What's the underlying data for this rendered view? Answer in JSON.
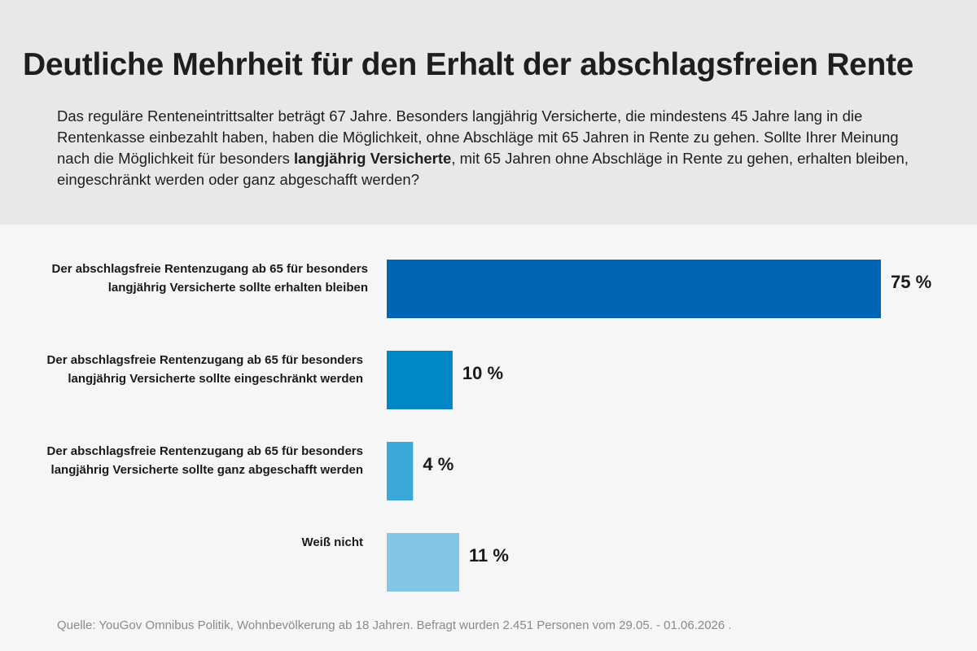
{
  "header": {
    "title": "Deutliche Mehrheit für den Erhalt der abschlagsfreien Rente",
    "subtitle_pre": "Das reguläre Renteneintrittsalter beträgt 67 Jahre. Besonders langjährig Versicherte, die mindestens 45 Jahre lang in die Rentenkasse einbezahlt haben, haben die Möglichkeit, ohne Abschläge mit 65 Jahren in Rente zu gehen. Sollte Ihrer Meinung nach die Möglichkeit für besonders ",
    "subtitle_bold": "langjährig Versicherte",
    "subtitle_post": ", mit 65 Jahren ohne Abschläge in Rente zu gehen, erhalten bleiben, eingeschränkt werden oder ganz abgeschafft werden?"
  },
  "chart_data": {
    "type": "bar",
    "orientation": "horizontal",
    "categories": [
      "Der abschlagsfreie Rentenzugang ab 65 für besonders langjährig Versicherte sollte erhalten bleiben",
      "Der abschlagsfreie Rentenzugang ab 65 für besonders langjährig Versicherte sollte eingeschränkt werden",
      "Der abschlagsfreie Rentenzugang ab 65 für besonders langjährig Versicherte sollte ganz abgeschafft werden",
      "Weiß nicht"
    ],
    "values": [
      75,
      10,
      4,
      11
    ],
    "value_labels": [
      "75 %",
      "10 %",
      "4 %",
      "11 %"
    ],
    "colors": [
      "#0066b3",
      "#0087c8",
      "#3aa8d8",
      "#85c5e5"
    ],
    "xlim": [
      0,
      75
    ],
    "grid": false,
    "legend": "none"
  },
  "footer": {
    "source": "Quelle: YouGov Omnibus Politik, Wohnbevölkerung ab 18 Jahren. Befragt wurden 2.451 Personen vom 29.05. - 01.06.2026 ."
  }
}
